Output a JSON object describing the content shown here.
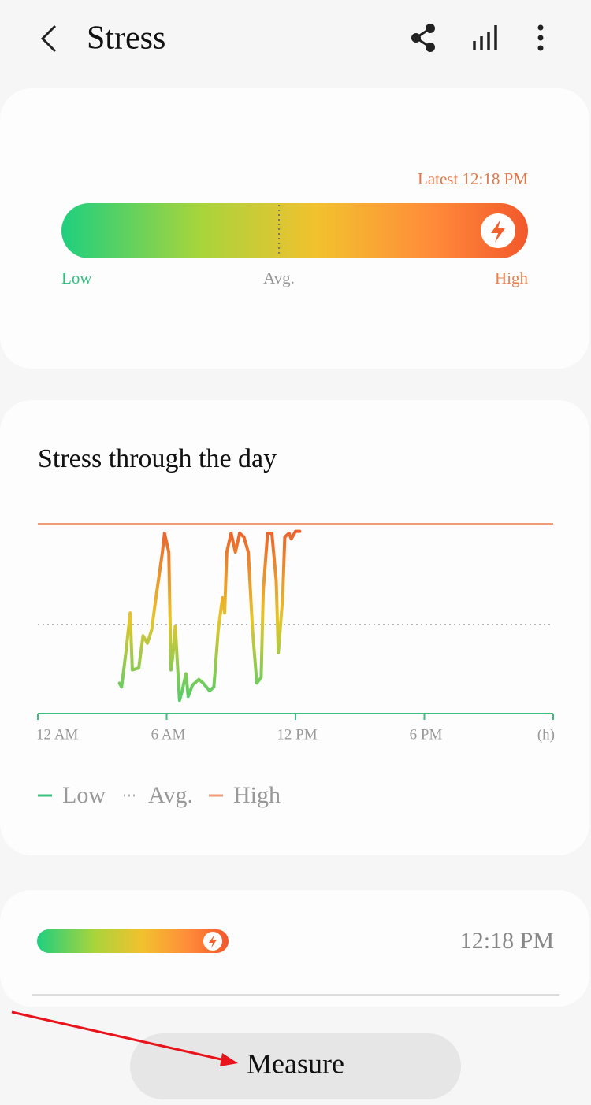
{
  "header": {
    "title": "Stress"
  },
  "summary": {
    "latest": "Latest 12:18 PM",
    "low": "Low",
    "avg": "Avg.",
    "high": "High"
  },
  "chart_data": {
    "type": "line",
    "title": "Stress through the day",
    "x": [
      3.8,
      3.9,
      4.1,
      4.3,
      4.4,
      4.7,
      4.9,
      5.1,
      5.3,
      5.5,
      5.8,
      5.9,
      6.1,
      6.2,
      6.3,
      6.4,
      6.6,
      6.7,
      6.9,
      7.0,
      7.2,
      7.5,
      7.7,
      8.0,
      8.2,
      8.4,
      8.6,
      8.7,
      8.8,
      9.0,
      9.2,
      9.4,
      9.6,
      9.8,
      10.0,
      10.2,
      10.4,
      10.5,
      10.7,
      10.9,
      11.1,
      11.2,
      11.4,
      11.5,
      11.7,
      11.8,
      12.0,
      12.2
    ],
    "values": [
      16,
      14,
      32,
      53,
      23,
      24,
      41,
      37,
      44,
      61,
      85,
      95,
      85,
      23,
      32,
      46,
      7,
      11,
      21,
      9,
      15,
      18,
      16,
      12,
      14,
      44,
      61,
      53,
      85,
      95,
      85,
      95,
      93,
      85,
      44,
      16,
      19,
      65,
      95,
      95,
      70,
      32,
      61,
      93,
      95,
      92,
      96,
      96
    ],
    "xlim": [
      0,
      24
    ],
    "xticks": [
      {
        "value": 0,
        "label": "12 AM"
      },
      {
        "value": 6,
        "label": "6 AM"
      },
      {
        "value": 12,
        "label": "12 PM"
      },
      {
        "value": 18,
        "label": "6 PM"
      },
      {
        "value": 24,
        "label": "(h)"
      }
    ],
    "ylim": [
      0,
      100
    ],
    "avg_value": 47,
    "line_colors": [
      "#3dcf72",
      "#e6c52c",
      "#ee5b2c"
    ],
    "legend": [
      {
        "name": "Low",
        "color": "#3dbf7f"
      },
      {
        "name": "Avg.",
        "color": "#b5b5b5"
      },
      {
        "name": "High",
        "color": "#ef9a78"
      }
    ]
  },
  "latest_record": {
    "time": "12:18 PM"
  },
  "button": {
    "label": "Measure"
  }
}
